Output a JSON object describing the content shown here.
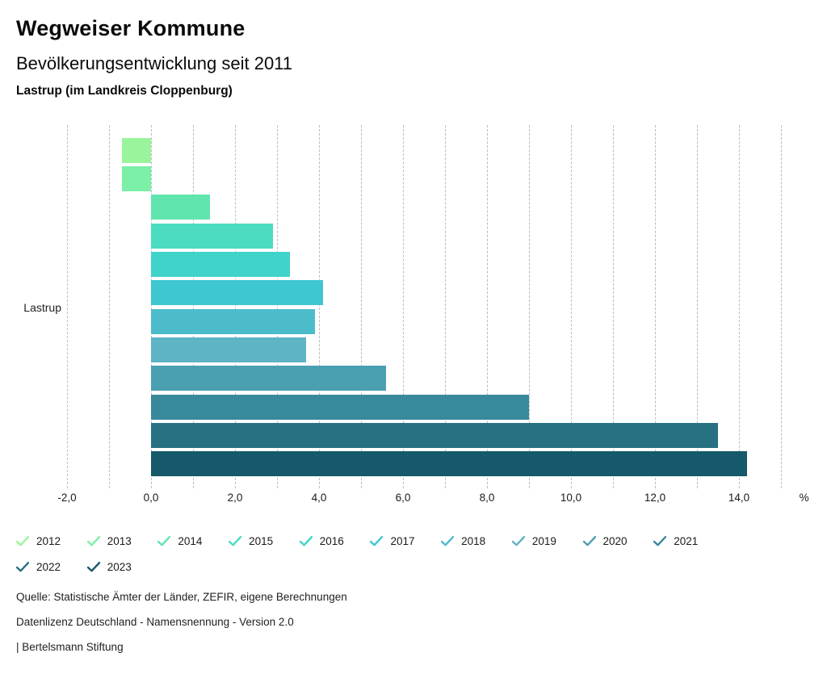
{
  "header": {
    "title": "Wegweiser Kommune",
    "subtitle": "Bevölkerungsentwicklung seit 2011",
    "region_line": "Lastrup (im Landkreis Cloppenburg)"
  },
  "chart_data": {
    "type": "bar",
    "orientation": "horizontal",
    "title": "Bevölkerungsentwicklung seit 2011",
    "group_label": "Lastrup",
    "categories": [
      "2012",
      "2013",
      "2014",
      "2015",
      "2016",
      "2017",
      "2018",
      "2019",
      "2020",
      "2021",
      "2022",
      "2023"
    ],
    "values": [
      -0.7,
      -0.7,
      1.4,
      2.9,
      3.3,
      4.1,
      3.9,
      3.7,
      5.6,
      9.0,
      13.5,
      14.2
    ],
    "colors": [
      "#98f59c",
      "#7bf0a6",
      "#61e5ae",
      "#4bdcc1",
      "#3fd3ca",
      "#3ec7d1",
      "#4cbccb",
      "#5eb3c5",
      "#4a9fb1",
      "#38899b",
      "#277183",
      "#15596b"
    ],
    "xlim": [
      -2,
      15
    ],
    "x_tick_values": [
      -2,
      0,
      2,
      4,
      6,
      8,
      10,
      12,
      14
    ],
    "x_tick_labels": [
      "-2,0",
      "0,0",
      "2,0",
      "4,0",
      "6,0",
      "8,0",
      "10,0",
      "12,0",
      "14,0"
    ],
    "x_axis_suffix": "%",
    "grid": "vertical-dashed",
    "gridline_color": "#bdbdbd",
    "legend_position": "bottom"
  },
  "footer": {
    "source": "Quelle: Statistische Ämter der Länder, ZEFIR, eigene Berechnungen",
    "license": "Datenlizenz Deutschland - Namensnennung - Version 2.0",
    "attribution": "| Bertelsmann Stiftung"
  }
}
